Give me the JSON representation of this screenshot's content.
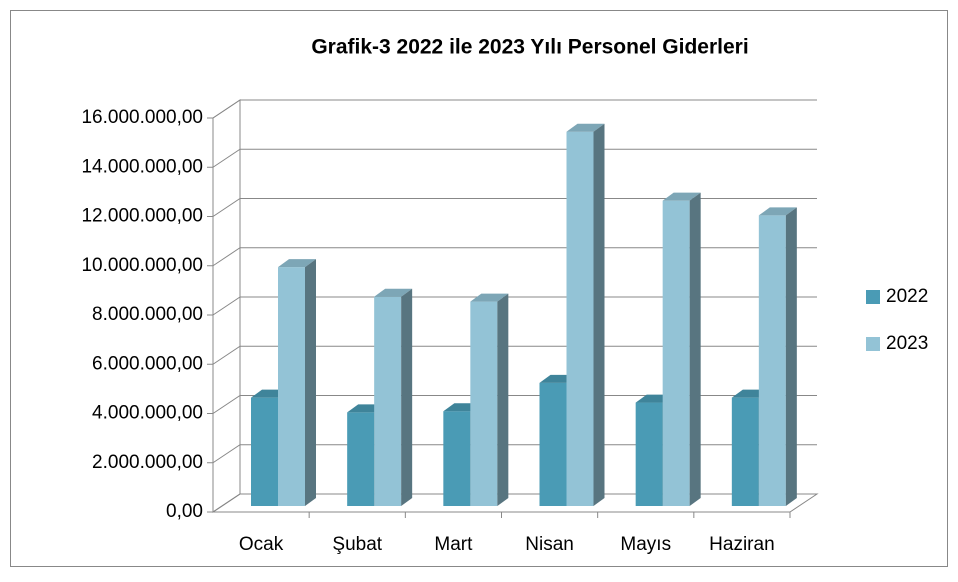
{
  "chart_data": {
    "type": "bar3d",
    "title": "Grafik-3 2022 ile 2023 Yılı Personel Giderleri",
    "categories": [
      "Ocak",
      "Şubat",
      "Mart",
      "Nisan",
      "Mayıs",
      "Haziran"
    ],
    "series": [
      {
        "name": "2022",
        "color": "#4a9bb5",
        "values": [
          4400000,
          3800000,
          3850000,
          5000000,
          4200000,
          4400000
        ]
      },
      {
        "name": "2023",
        "color": "#93c3d6",
        "values": [
          9700000,
          8500000,
          8300000,
          15200000,
          12400000,
          11800000
        ]
      }
    ],
    "ylim": [
      0,
      16000000
    ],
    "yticks": [
      {
        "value": 0,
        "label": "0,00"
      },
      {
        "value": 2000000,
        "label": "2.000.000,00"
      },
      {
        "value": 4000000,
        "label": "4.000.000,00"
      },
      {
        "value": 6000000,
        "label": "6.000.000,00"
      },
      {
        "value": 8000000,
        "label": "8.000.000,00"
      },
      {
        "value": 10000000,
        "label": "10.000.000,00"
      },
      {
        "value": 12000000,
        "label": "12.000.000,00"
      },
      {
        "value": 14000000,
        "label": "14.000.000,00"
      },
      {
        "value": 16000000,
        "label": "16.000.000,00"
      }
    ],
    "grid": true,
    "legend": "right"
  }
}
